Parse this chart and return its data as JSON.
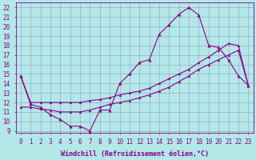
{
  "xlabel": "Windchill (Refroidissement éolien,°C)",
  "bg_color": "#b3e8e8",
  "line_color": "#880088",
  "grid_color": "#9999bb",
  "xlim": [
    -0.5,
    23.5
  ],
  "ylim": [
    8.8,
    22.5
  ],
  "xticks": [
    0,
    1,
    2,
    3,
    4,
    5,
    6,
    7,
    8,
    9,
    10,
    11,
    12,
    13,
    14,
    15,
    16,
    17,
    18,
    19,
    20,
    21,
    22,
    23
  ],
  "yticks": [
    9,
    10,
    11,
    12,
    13,
    14,
    15,
    16,
    17,
    18,
    19,
    20,
    21,
    22
  ],
  "curve1_x": [
    0,
    1,
    2,
    3,
    4,
    5,
    6,
    7,
    8,
    9,
    10,
    11,
    12,
    13,
    14,
    15,
    16,
    17,
    18,
    19,
    20,
    21,
    22,
    23
  ],
  "curve1_y": [
    14.8,
    11.8,
    11.5,
    10.7,
    10.2,
    9.5,
    9.5,
    9.0,
    11.2,
    11.2,
    14.0,
    15.0,
    16.2,
    16.5,
    19.2,
    20.2,
    21.3,
    22.0,
    21.2,
    18.0,
    17.8,
    16.5,
    14.8,
    13.8
  ],
  "curve2_x": [
    0,
    1,
    2,
    3,
    4,
    5,
    6,
    7,
    8,
    9,
    10,
    11,
    12,
    13,
    14,
    15,
    16,
    17,
    18,
    19,
    20,
    21,
    22,
    23
  ],
  "curve2_y": [
    11.5,
    11.5,
    11.3,
    11.2,
    11.0,
    11.0,
    11.0,
    11.2,
    11.5,
    11.8,
    12.0,
    12.2,
    12.5,
    12.8,
    13.2,
    13.6,
    14.2,
    14.8,
    15.5,
    16.0,
    16.5,
    17.0,
    17.5,
    13.8
  ],
  "curve3_x": [
    0,
    1,
    2,
    3,
    4,
    5,
    6,
    7,
    8,
    9,
    10,
    11,
    12,
    13,
    14,
    15,
    16,
    17,
    18,
    19,
    20,
    21,
    22,
    23
  ],
  "curve3_y": [
    14.8,
    12.0,
    12.0,
    12.0,
    12.0,
    12.0,
    12.0,
    12.2,
    12.3,
    12.5,
    12.8,
    13.0,
    13.2,
    13.5,
    14.0,
    14.5,
    15.0,
    15.5,
    16.2,
    16.8,
    17.5,
    18.2,
    18.0,
    13.8
  ],
  "tick_fontsize": 5.5,
  "xlabel_fontsize": 6.0
}
